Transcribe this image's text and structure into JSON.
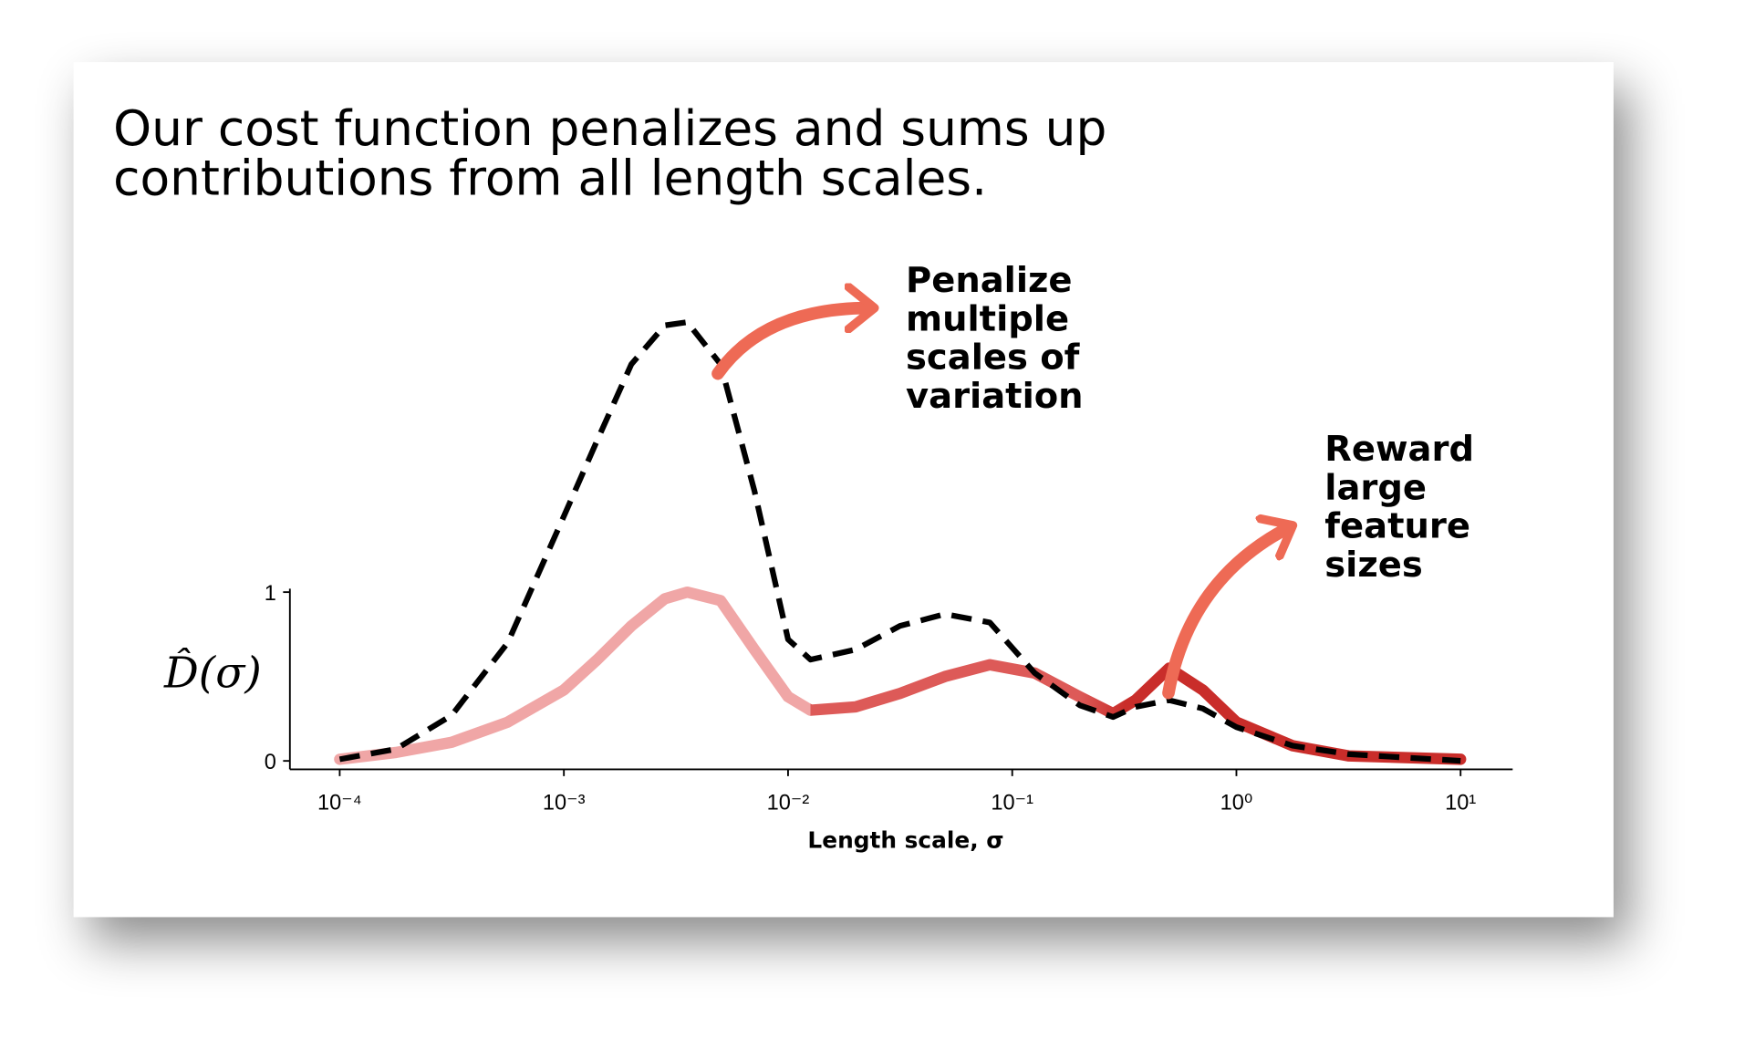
{
  "chart_data": {
    "type": "line",
    "title": [
      "Our cost function penalizes and sums up",
      "contributions from all length scales."
    ],
    "x_label": "Length scale, σ",
    "y_label": "D̂(σ)",
    "log_x": true,
    "x": [
      0.0001,
      0.000178,
      0.000316,
      0.000562,
      0.001,
      0.00141,
      0.002,
      0.00282,
      0.00355,
      0.005,
      0.00708,
      0.01,
      0.0126,
      0.02,
      0.0316,
      0.0501,
      0.0794,
      0.126,
      0.2,
      0.282,
      0.355,
      0.501,
      0.708,
      1,
      1.78,
      3.16,
      10
    ],
    "series": [
      {
        "color_stops": [
          "#f0a6a6",
          "#dd5a58",
          "#c92d2a"
        ],
        "dashed": false,
        "values": [
          0.01,
          0.05,
          0.11,
          0.23,
          0.42,
          0.6,
          0.8,
          0.96,
          1.0,
          0.95,
          0.66,
          0.38,
          0.3,
          0.32,
          0.4,
          0.5,
          0.57,
          0.52,
          0.38,
          0.28,
          0.36,
          0.55,
          0.42,
          0.23,
          0.09,
          0.03,
          0.01
        ]
      },
      {
        "color": "#000000",
        "dashed": true,
        "values": [
          0.01,
          0.07,
          0.27,
          0.7,
          1.45,
          1.9,
          2.35,
          2.58,
          2.6,
          2.35,
          1.6,
          0.72,
          0.6,
          0.66,
          0.8,
          0.87,
          0.82,
          0.52,
          0.33,
          0.26,
          0.32,
          0.36,
          0.31,
          0.2,
          0.09,
          0.04,
          0.0
        ]
      }
    ],
    "xlim": [
      0.0001,
      10
    ],
    "xticks": [
      {
        "value": 0.0001,
        "label": "10⁻⁴"
      },
      {
        "value": 0.001,
        "label": "10⁻³"
      },
      {
        "value": 0.01,
        "label": "10⁻²"
      },
      {
        "value": 0.1,
        "label": "10⁻¹"
      },
      {
        "value": 1,
        "label": "10⁰"
      },
      {
        "value": 10,
        "label": "10¹"
      }
    ],
    "ylim": [
      -0.05,
      2.65
    ],
    "yticks": [
      0,
      1
    ],
    "annotations": [
      [
        "Penalize",
        "multiple",
        "scales of",
        "variation"
      ],
      [
        "Reward",
        "large",
        "feature",
        "sizes"
      ]
    ],
    "arrow_color": "#ee6a55"
  }
}
